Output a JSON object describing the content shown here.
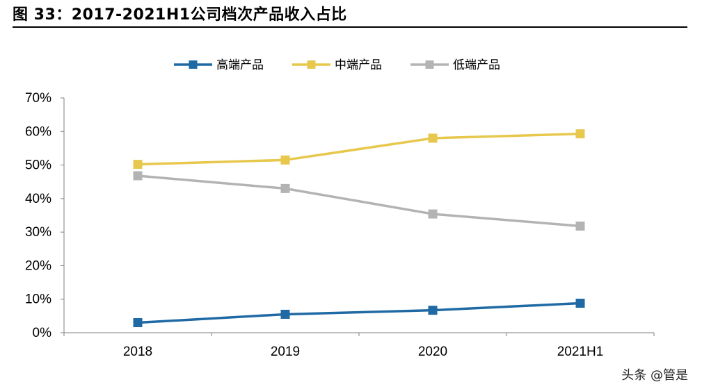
{
  "figure": {
    "title": "图  33：2017-2021H1公司档次产品收入占比",
    "watermark": "头条 @管是"
  },
  "chart_data": {
    "type": "line",
    "categories": [
      "2018",
      "2019",
      "2020",
      "2021H1"
    ],
    "series": [
      {
        "name": "高端产品",
        "color": "#1f6aa5",
        "values": [
          3.0,
          5.5,
          6.7,
          8.8
        ]
      },
      {
        "name": "中端产品",
        "color": "#e7c84d",
        "values": [
          50.2,
          51.5,
          58.0,
          59.3
        ]
      },
      {
        "name": "低端产品",
        "color": "#b3b3b3",
        "values": [
          46.8,
          43.0,
          35.4,
          31.8
        ]
      }
    ],
    "ylim": [
      0,
      70
    ],
    "yticks": [
      "0%",
      "10%",
      "20%",
      "30%",
      "40%",
      "50%",
      "60%",
      "70%"
    ],
    "xlabel": "",
    "ylabel": "",
    "legend_position": "top",
    "grid": false,
    "marker": "square"
  }
}
